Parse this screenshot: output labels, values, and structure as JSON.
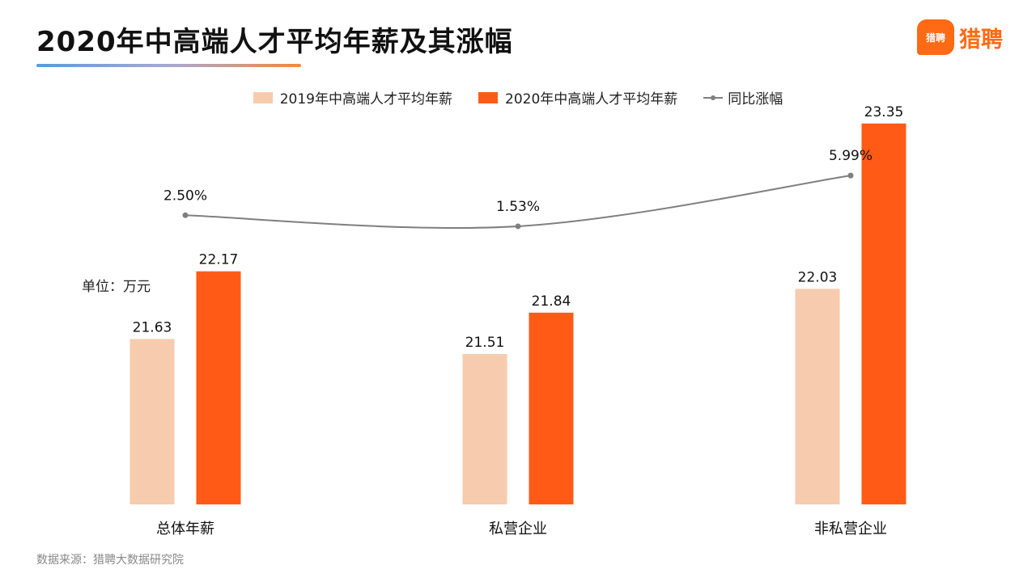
{
  "page": {
    "title": "2020年中高端人才平均年薪及其涨幅",
    "unit": "单位：万元",
    "source": "数据来源：猎聘大数据研究院"
  },
  "logo": {
    "badge": "猎聘",
    "text": "猎聘"
  },
  "colors": {
    "s2019": "#f7cbad",
    "s2020": "#ff5b17",
    "line": "#7f7f7f",
    "brand": "#ff6a14"
  },
  "chart_data": {
    "type": "bar",
    "categories": [
      "总体年薪",
      "私营企业",
      "非私营企业"
    ],
    "series": [
      {
        "name": "2019年中高端人才平均年薪",
        "values": [
          21.63,
          21.51,
          22.03
        ],
        "labels": [
          "21.63",
          "21.51",
          "22.03"
        ]
      },
      {
        "name": "2020年中高端人才平均年薪",
        "values": [
          22.17,
          21.84,
          23.35
        ],
        "labels": [
          "22.17",
          "21.84",
          "23.35"
        ]
      }
    ],
    "line_series": {
      "name": "同比涨幅",
      "values": [
        2.5,
        1.53,
        5.99
      ],
      "labels": [
        "2.50%",
        "1.53%",
        "5.99%"
      ]
    },
    "legend": [
      "2019年中高端人才平均年薪",
      "2020年中高端人才平均年薪",
      "同比涨幅"
    ],
    "legend_position": "top",
    "grid": false
  }
}
